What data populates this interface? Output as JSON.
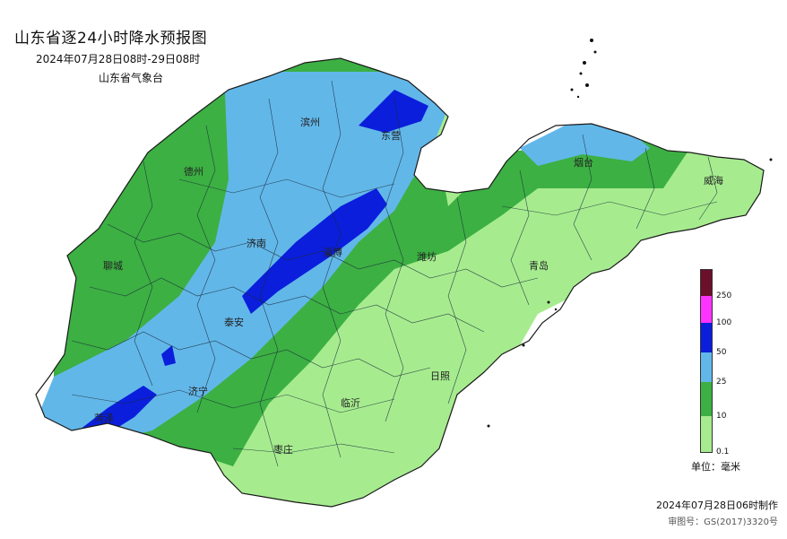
{
  "title": "山东省逐24小时降水预报图",
  "subtitle": "2024年07月28日08时-29日08时",
  "agency": "山东省气象台",
  "cities": [
    {
      "name": "滨州"
    },
    {
      "name": "东营"
    },
    {
      "name": "德州"
    },
    {
      "name": "烟台"
    },
    {
      "name": "威海"
    },
    {
      "name": "济南"
    },
    {
      "name": "淄博"
    },
    {
      "name": "聊城"
    },
    {
      "name": "潍坊"
    },
    {
      "name": "青岛"
    },
    {
      "name": "泰安"
    },
    {
      "name": "济宁"
    },
    {
      "name": "日照"
    },
    {
      "name": "临沂"
    },
    {
      "name": "菏泽"
    },
    {
      "name": "枣庄"
    }
  ],
  "legend": {
    "ticks": [
      "250",
      "100",
      "50",
      "25",
      "10",
      "0.1"
    ],
    "colors": {
      "over250": "#6b0f2a",
      "100_250": "#ff33ff",
      "50_100": "#0a1edc",
      "25_50": "#62b7e9",
      "10_25": "#3cb043",
      "0.1_10": "#a6ec8f"
    },
    "unit": "单位：毫米"
  },
  "production_time": "2024年07月28日06时制作",
  "approval": "审图号：GS(2017)3320号"
}
